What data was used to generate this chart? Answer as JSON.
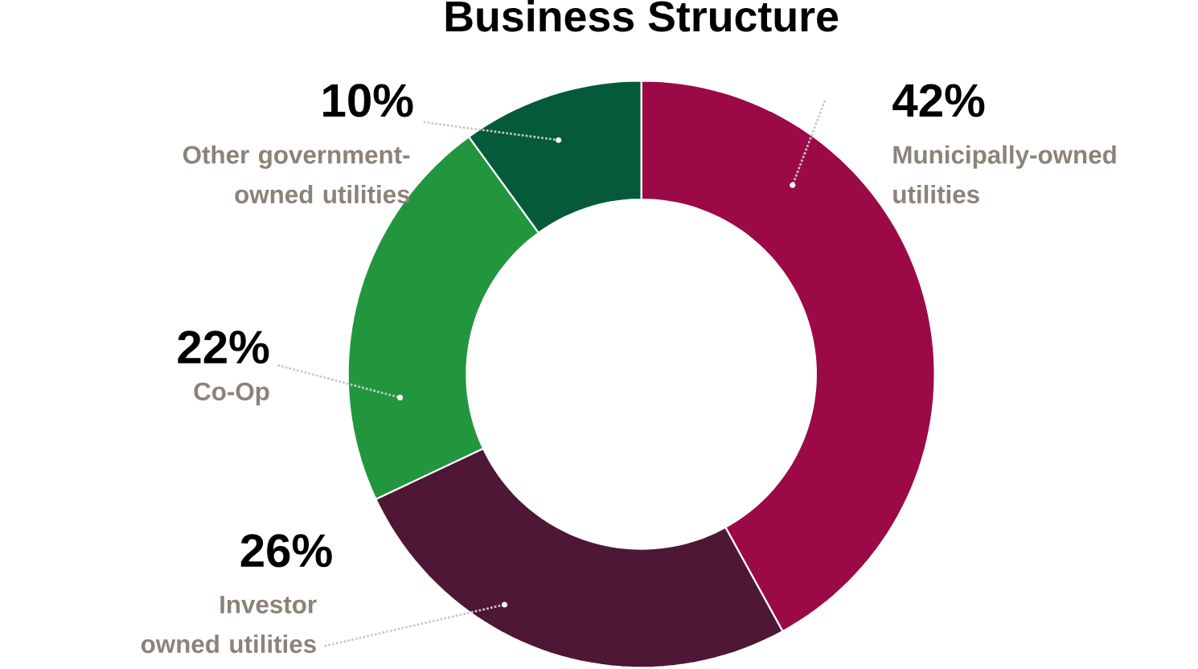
{
  "chart_data": {
    "type": "donut",
    "title": "Business Structure",
    "categories": [
      "Municipally-owned utilities",
      "Investor owned utilities",
      "Co-Op",
      "Other government-owned utilities"
    ],
    "values": [
      42,
      26,
      22,
      10
    ],
    "colors": [
      "#9b0a46",
      "#4e1735",
      "#22963e",
      "#055a3a"
    ],
    "value_labels": [
      "42%",
      "26%",
      "22%",
      "10%"
    ]
  }
}
